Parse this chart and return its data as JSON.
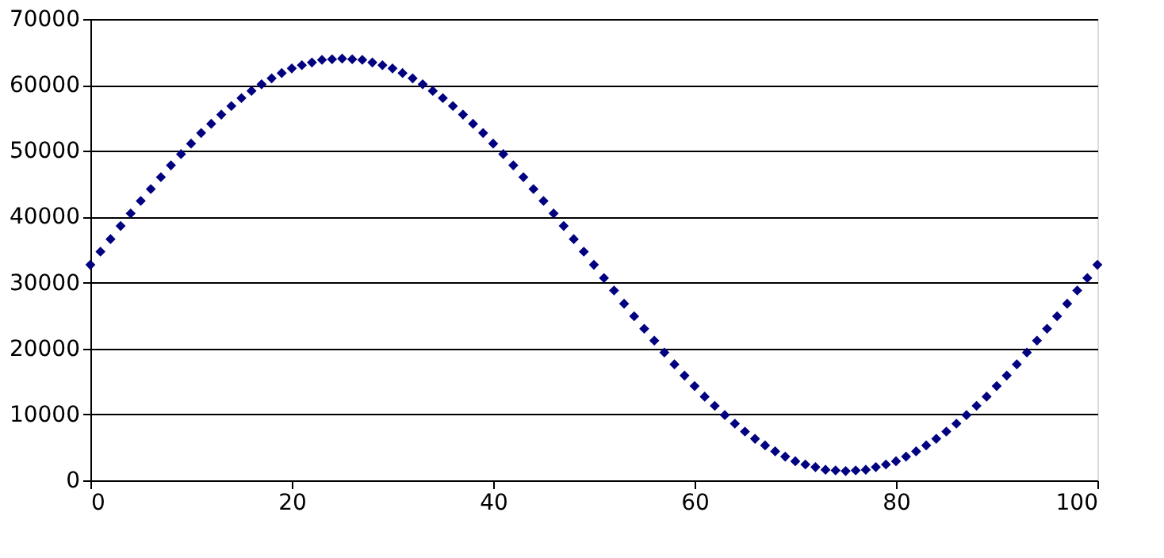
{
  "chart_data": {
    "type": "scatter",
    "marker": "diamond",
    "grid": "y",
    "xlim": [
      0,
      100
    ],
    "xticks": [
      0,
      20,
      40,
      60,
      80,
      100
    ],
    "ylim": [
      0,
      70000
    ],
    "yticks": [
      0,
      10000,
      20000,
      30000,
      40000,
      50000,
      60000,
      70000
    ],
    "x": [
      0,
      1,
      2,
      3,
      4,
      5,
      6,
      7,
      8,
      9,
      10,
      11,
      12,
      13,
      14,
      15,
      16,
      17,
      18,
      19,
      20,
      21,
      22,
      23,
      24,
      25,
      26,
      27,
      28,
      29,
      30,
      31,
      32,
      33,
      34,
      35,
      36,
      37,
      38,
      39,
      40,
      41,
      42,
      43,
      44,
      45,
      46,
      47,
      48,
      49,
      50,
      51,
      52,
      53,
      54,
      55,
      56,
      57,
      58,
      59,
      60,
      61,
      62,
      63,
      64,
      65,
      66,
      67,
      68,
      69,
      70,
      71,
      72,
      73,
      74,
      75,
      76,
      77,
      78,
      79,
      80,
      81,
      82,
      83,
      84,
      85,
      86,
      87,
      88,
      89,
      90,
      91,
      92,
      93,
      94,
      95,
      96,
      97,
      98,
      99,
      100
    ],
    "series": [
      {
        "color": "#000080",
        "values": [
          32700,
          34700,
          36600,
          38600,
          40500,
          42400,
          44200,
          46000,
          47800,
          49500,
          51100,
          52700,
          54100,
          55500,
          56800,
          58000,
          59100,
          60100,
          61000,
          61800,
          62500,
          63000,
          63400,
          63800,
          63900,
          64000,
          63900,
          63800,
          63400,
          63000,
          62500,
          61800,
          61000,
          60100,
          59100,
          58000,
          56800,
          55500,
          54100,
          52700,
          51100,
          49500,
          47800,
          46000,
          44200,
          42400,
          40500,
          38600,
          36600,
          34700,
          32700,
          30700,
          28800,
          26800,
          24900,
          23000,
          21200,
          19400,
          17600,
          15900,
          14300,
          12700,
          11300,
          9900,
          8600,
          7400,
          6300,
          5300,
          4400,
          3600,
          2900,
          2400,
          2000,
          1600,
          1500,
          1400,
          1500,
          1600,
          2000,
          2400,
          2900,
          3600,
          4400,
          5300,
          6300,
          7400,
          8600,
          9900,
          11300,
          12700,
          14300,
          15900,
          17600,
          19400,
          21200,
          23000,
          24900,
          26800,
          28800,
          30700,
          32700
        ]
      }
    ]
  }
}
